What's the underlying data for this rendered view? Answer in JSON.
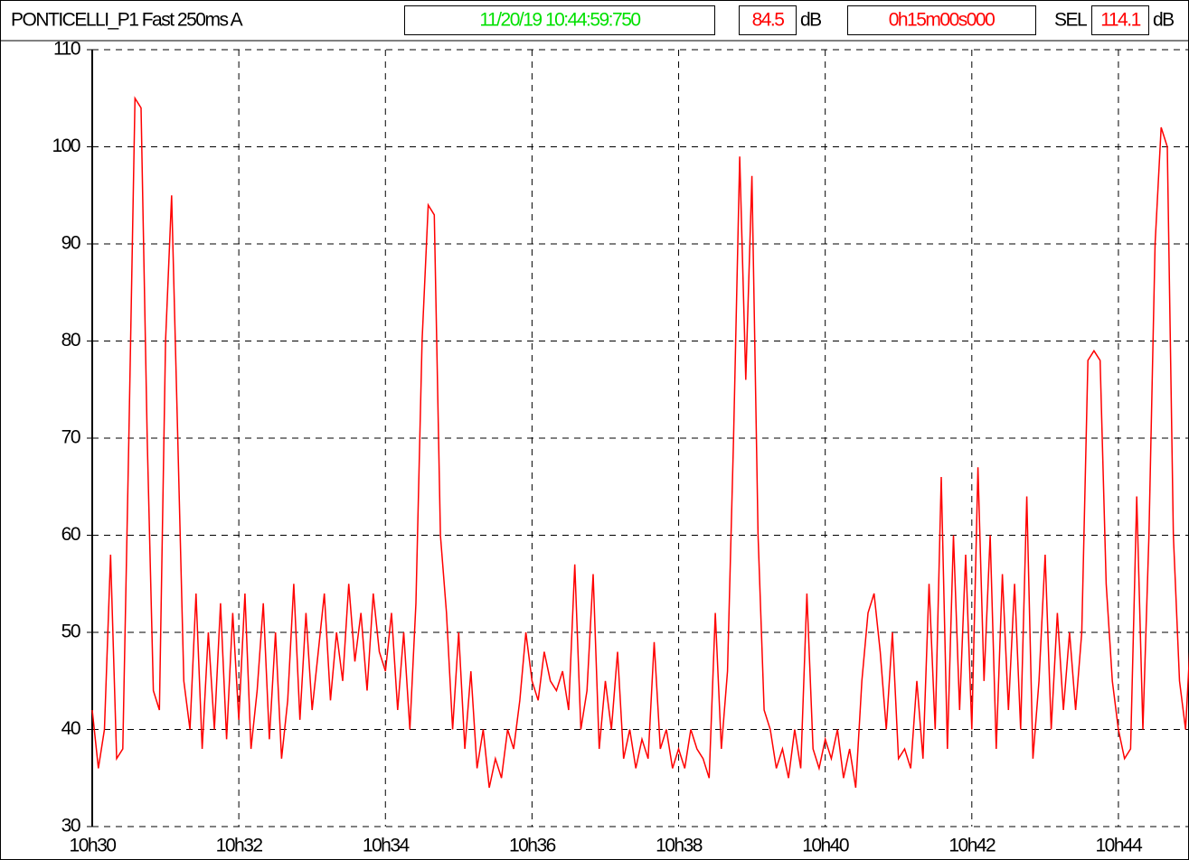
{
  "header": {
    "name": "PONTICELLI_P1  Fast 250ms  A",
    "timestamp": "11/20/19 10:44:59:750",
    "level": "84.5",
    "level_unit": "dB",
    "duration": "0h15m00s000",
    "sel_label": "SEL",
    "sel": "114.1",
    "sel_unit": "dB"
  },
  "chart_data": {
    "type": "line",
    "color": "#ff0000",
    "grid": true,
    "ylim": [
      30,
      110
    ],
    "yticks": [
      30,
      40,
      50,
      60,
      70,
      80,
      90,
      100,
      110
    ],
    "xlim": [
      37800,
      38700
    ],
    "xticks": [
      {
        "value": 37800,
        "label": "10h30"
      },
      {
        "value": 37920,
        "label": "10h32"
      },
      {
        "value": 38040,
        "label": "10h34"
      },
      {
        "value": 38160,
        "label": "10h36"
      },
      {
        "value": 38280,
        "label": "10h38"
      },
      {
        "value": 38400,
        "label": "10h40"
      },
      {
        "value": 38520,
        "label": "10h42"
      },
      {
        "value": 38640,
        "label": "10h44"
      }
    ],
    "x": [
      37800,
      37805,
      37810,
      37815,
      37820,
      37825,
      37830,
      37835,
      37840,
      37845,
      37850,
      37855,
      37860,
      37865,
      37870,
      37875,
      37880,
      37885,
      37890,
      37895,
      37900,
      37905,
      37910,
      37915,
      37920,
      37925,
      37930,
      37935,
      37940,
      37945,
      37950,
      37955,
      37960,
      37965,
      37970,
      37975,
      37980,
      37985,
      37990,
      37995,
      38000,
      38005,
      38010,
      38015,
      38020,
      38025,
      38030,
      38035,
      38040,
      38045,
      38050,
      38055,
      38060,
      38065,
      38070,
      38075,
      38080,
      38085,
      38090,
      38095,
      38100,
      38105,
      38110,
      38115,
      38120,
      38125,
      38130,
      38135,
      38140,
      38145,
      38150,
      38155,
      38160,
      38165,
      38170,
      38175,
      38180,
      38185,
      38190,
      38195,
      38200,
      38205,
      38210,
      38215,
      38220,
      38225,
      38230,
      38235,
      38240,
      38245,
      38250,
      38255,
      38260,
      38265,
      38270,
      38275,
      38280,
      38285,
      38290,
      38295,
      38300,
      38305,
      38310,
      38315,
      38320,
      38325,
      38330,
      38335,
      38340,
      38345,
      38350,
      38355,
      38360,
      38365,
      38370,
      38375,
      38380,
      38385,
      38390,
      38395,
      38400,
      38405,
      38410,
      38415,
      38420,
      38425,
      38430,
      38435,
      38440,
      38445,
      38450,
      38455,
      38460,
      38465,
      38470,
      38475,
      38480,
      38485,
      38490,
      38495,
      38500,
      38505,
      38510,
      38515,
      38520,
      38525,
      38530,
      38535,
      38540,
      38545,
      38550,
      38555,
      38560,
      38565,
      38570,
      38575,
      38580,
      38585,
      38590,
      38595,
      38600,
      38605,
      38610,
      38615,
      38620,
      38625,
      38630,
      38635,
      38640,
      38645,
      38650,
      38655,
      38660,
      38665,
      38670,
      38675,
      38680,
      38685,
      38690,
      38695,
      38700
    ],
    "values": [
      42,
      36,
      40,
      58,
      37,
      38,
      70,
      105,
      104,
      70,
      44,
      42,
      80,
      95,
      70,
      45,
      40,
      54,
      38,
      50,
      40,
      53,
      39,
      52,
      41,
      54,
      38,
      44,
      53,
      39,
      50,
      37,
      43,
      55,
      41,
      52,
      42,
      48,
      54,
      43,
      50,
      45,
      55,
      47,
      52,
      44,
      54,
      48,
      46,
      52,
      42,
      50,
      40,
      53,
      80,
      94,
      93,
      60,
      52,
      40,
      50,
      38,
      46,
      36,
      40,
      34,
      37,
      35,
      40,
      38,
      43,
      50,
      45,
      43,
      48,
      45,
      44,
      46,
      42,
      57,
      40,
      44,
      56,
      38,
      45,
      40,
      48,
      37,
      40,
      36,
      39,
      37,
      49,
      38,
      40,
      36,
      38,
      36,
      40,
      38,
      37,
      35,
      52,
      38,
      46,
      70,
      99,
      76,
      97,
      60,
      42,
      40,
      36,
      38,
      35,
      40,
      36,
      54,
      38,
      36,
      39,
      37,
      40,
      35,
      38,
      34,
      45,
      52,
      54,
      48,
      40,
      50,
      37,
      38,
      36,
      45,
      37,
      55,
      40,
      66,
      38,
      60,
      42,
      58,
      40,
      67,
      45,
      60,
      38,
      56,
      42,
      55,
      40,
      64,
      37,
      45,
      58,
      40,
      52,
      42,
      50,
      42,
      50,
      78,
      79,
      78,
      55,
      45,
      40,
      37,
      38,
      64,
      40,
      60,
      90,
      102,
      100,
      60,
      45,
      40,
      52
    ]
  }
}
